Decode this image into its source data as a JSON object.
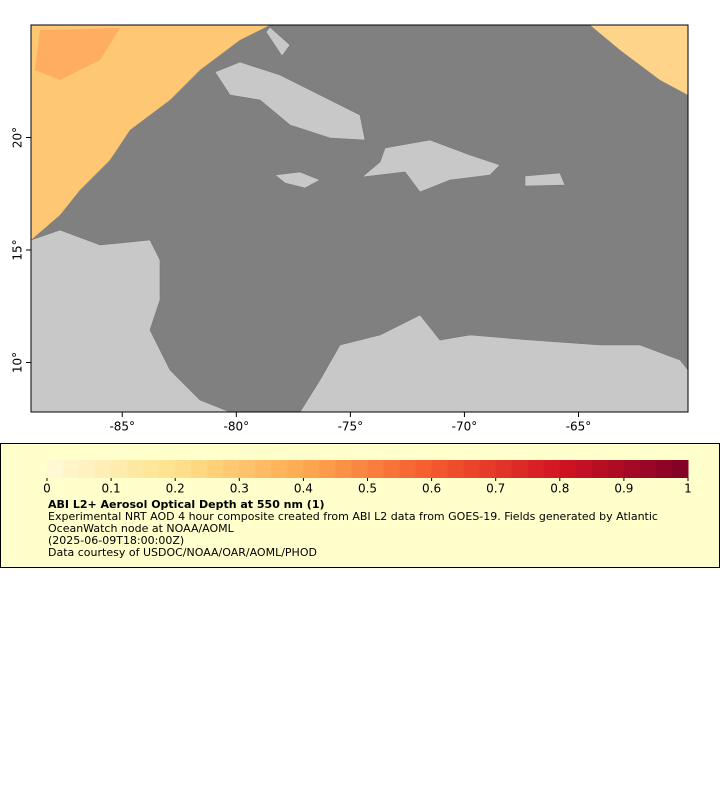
{
  "map": {
    "xlim": [
      -89,
      -60.2
    ],
    "ylim": [
      7.8,
      25
    ],
    "xticks": [
      {
        "value": -85,
        "label": "-85°"
      },
      {
        "value": -80,
        "label": "-80°"
      },
      {
        "value": -75,
        "label": "-75°"
      },
      {
        "value": -70,
        "label": "-70°"
      },
      {
        "value": -65,
        "label": "-65°"
      }
    ],
    "yticks": [
      {
        "value": 20,
        "label": "20°"
      },
      {
        "value": 15,
        "label": "15°"
      },
      {
        "value": 10,
        "label": "10°"
      }
    ]
  },
  "colorbar": {
    "lim": [
      0,
      1
    ],
    "ticks": [
      0,
      0.1,
      0.2,
      0.3,
      0.4,
      0.5,
      0.6,
      0.7,
      0.8,
      0.9,
      1
    ]
  },
  "legend": {
    "title": "ABI L2+ Aerosol Optical Depth at 550 nm (1)",
    "description": "Experimental NRT AOD 4 hour composite created from ABI L2 data from GOES-19. Fields generated by Atlantic OceanWatch node at NOAA/AOML",
    "timestamp": "(2025-06-09T18:00:00Z)",
    "credit": "Data courtesy of USDOC/NOAA/OAR/AOML/PHOD"
  }
}
